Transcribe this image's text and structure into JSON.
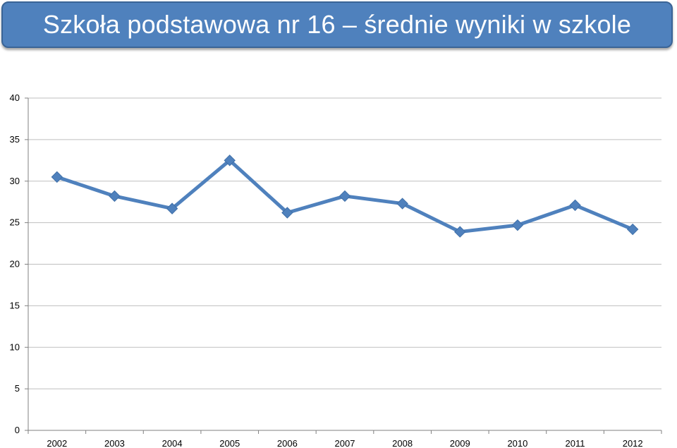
{
  "header": {
    "title": "Szkoła podstawowa nr 16 – średnie wyniki w szkole"
  },
  "colors": {
    "banner": "#4f81bd",
    "series": "#4f81bd",
    "grid": "#bfbfbf",
    "axis": "#808080"
  },
  "chart_data": {
    "type": "line",
    "title": "Szkoła podstawowa nr 16 – średnie wyniki w szkole",
    "xlabel": "",
    "ylabel": "",
    "categories": [
      "2002",
      "2003",
      "2004",
      "2005",
      "2006",
      "2007",
      "2008",
      "2009",
      "2010",
      "2011",
      "2012"
    ],
    "series": [
      {
        "values": [
          30.5,
          28.2,
          26.7,
          32.5,
          26.2,
          28.2,
          27.3,
          23.9,
          24.7,
          27.1,
          24.2
        ],
        "marker": "diamond"
      }
    ],
    "ylim": [
      0,
      40
    ],
    "yticks": [
      "0",
      "5",
      "10",
      "15",
      "20",
      "25",
      "30",
      "35",
      "40"
    ],
    "grid": true,
    "legend": "none"
  }
}
